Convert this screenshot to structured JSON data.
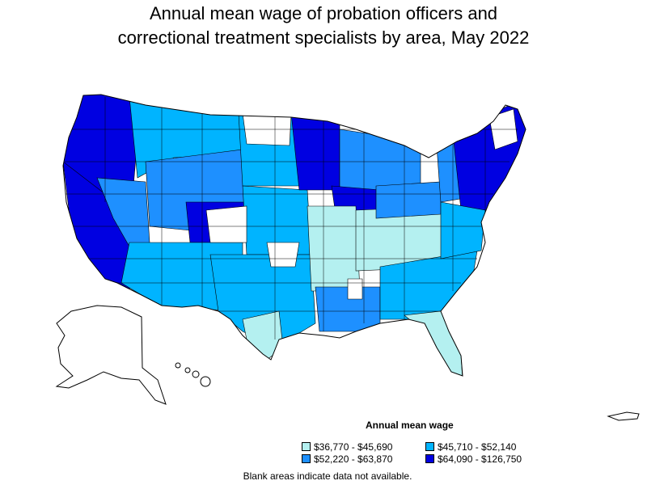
{
  "title_line1": "Annual mean wage of probation officers and",
  "title_line2": "correctional treatment specialists by area, May 2022",
  "legend": {
    "title": "Annual mean wage",
    "items": [
      {
        "label": "$36,770 - $45,690",
        "color": "#b4f0f0"
      },
      {
        "label": "$45,710 - $52,140",
        "color": "#00b4ff"
      },
      {
        "label": "$52,220 - $63,870",
        "color": "#1e90ff"
      },
      {
        "label": "$64,090 - $126,750",
        "color": "#0000e1"
      }
    ]
  },
  "footnote": "Blank areas indicate data not available.",
  "colors": {
    "border": "#000000",
    "blank": "#ffffff"
  }
}
